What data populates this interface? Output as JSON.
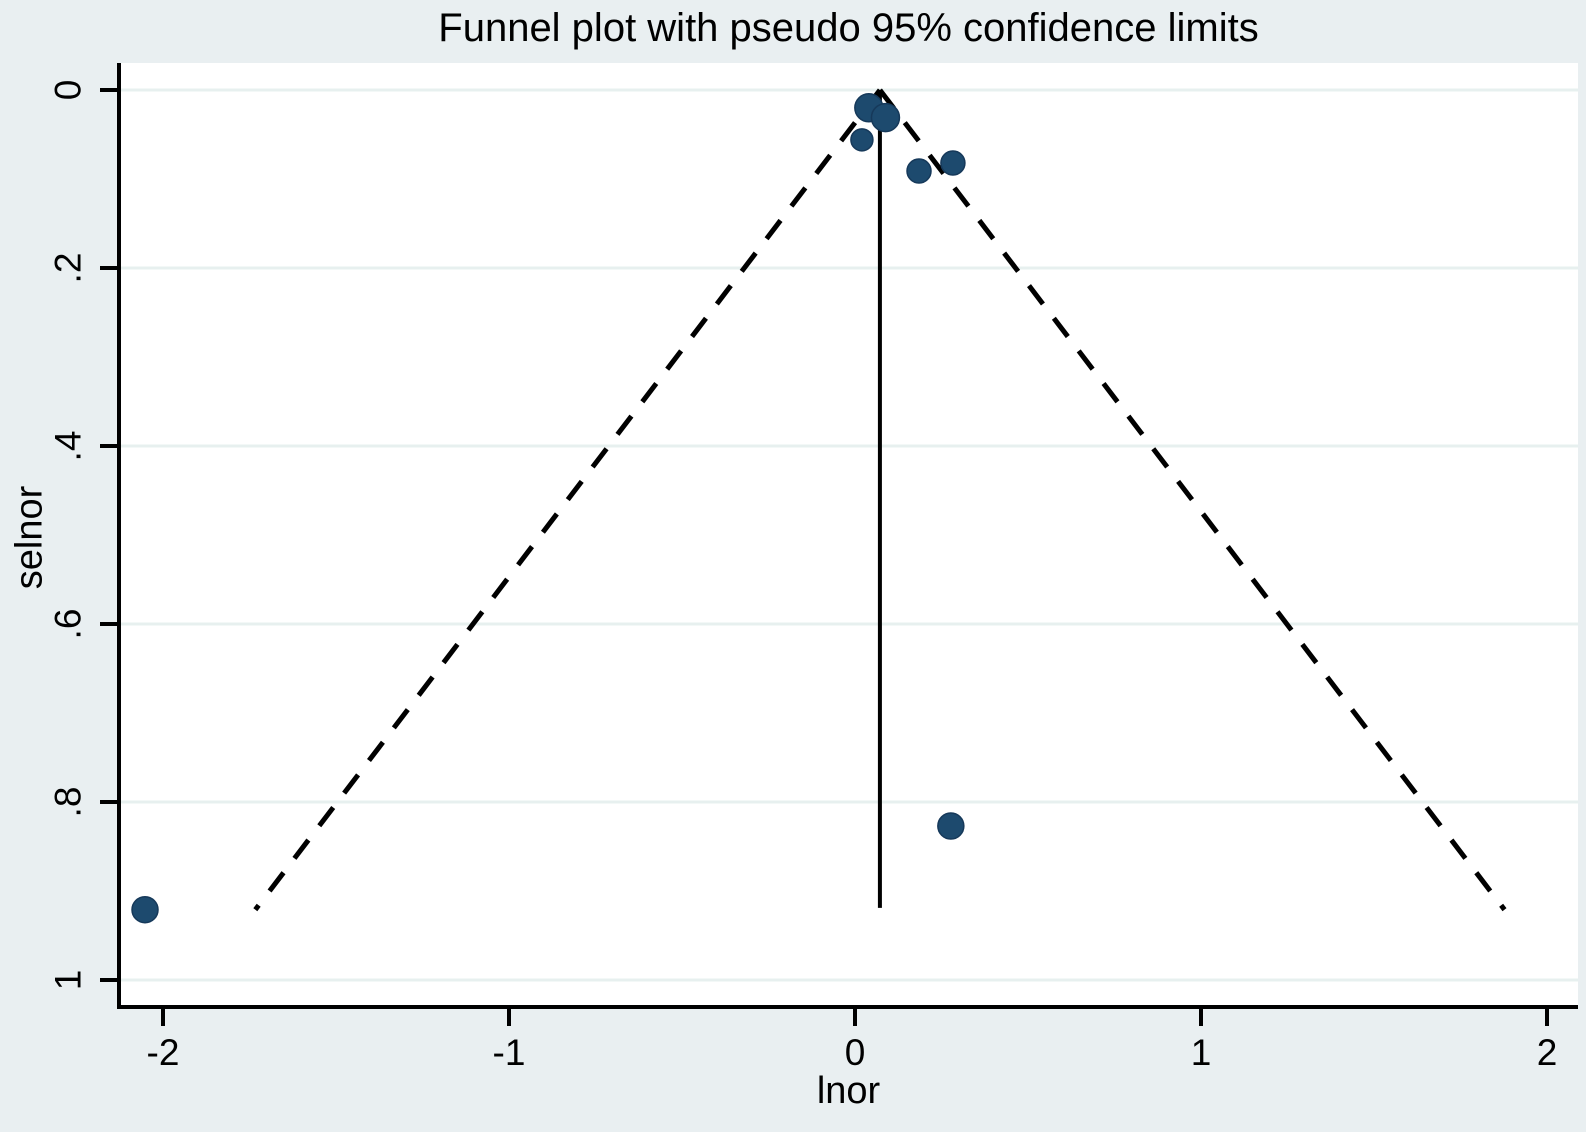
{
  "title": "Funnel plot with pseudo 95% confidence limits",
  "chart_data": {
    "type": "scatter",
    "title": "Funnel plot with pseudo 95% confidence limits",
    "xlabel": "lnor",
    "ylabel": "selnor",
    "y_axis_inverted": true,
    "xlim": [
      -2.13,
      2.09
    ],
    "ylim": [
      0,
      1.03
    ],
    "grid": "horizontal-only",
    "x_ticks": {
      "values": [
        -2,
        -1,
        0,
        1,
        2
      ],
      "labels": [
        "-2",
        "-1",
        "0",
        "1",
        "2"
      ]
    },
    "y_ticks": {
      "values": [
        0,
        0.2,
        0.4,
        0.6,
        0.8,
        1
      ],
      "labels": [
        "0",
        ".2",
        ".4",
        ".6",
        ".8",
        "1"
      ]
    },
    "points": [
      {
        "lnor": 0.04,
        "selnor": 0.02,
        "r": 14
      },
      {
        "lnor": 0.088,
        "selnor": 0.031,
        "r": 14
      },
      {
        "lnor": 0.02,
        "selnor": 0.056,
        "r": 11
      },
      {
        "lnor": 0.185,
        "selnor": 0.091,
        "r": 12
      },
      {
        "lnor": 0.283,
        "selnor": 0.082,
        "r": 12
      },
      {
        "lnor": 0.277,
        "selnor": 0.827,
        "r": 13
      },
      {
        "lnor": -2.052,
        "selnor": 0.921,
        "r": 13
      }
    ],
    "estimate_line": {
      "x": 0.072,
      "se_from": 0,
      "se_to": 0.919,
      "style": "solid"
    },
    "pseudo_ci_limits": {
      "center": 0.072,
      "multiplier": 1.96,
      "se_from": 0,
      "se_to": 0.921,
      "style": "dashed"
    },
    "colors": {
      "marker": "#1d4a6e",
      "marker_edge": "#16395a",
      "line": "#000000",
      "background": "#e9eff1",
      "plot_background": "#ffffff",
      "gridline": "#e7f0ef",
      "text": "#000000"
    }
  }
}
